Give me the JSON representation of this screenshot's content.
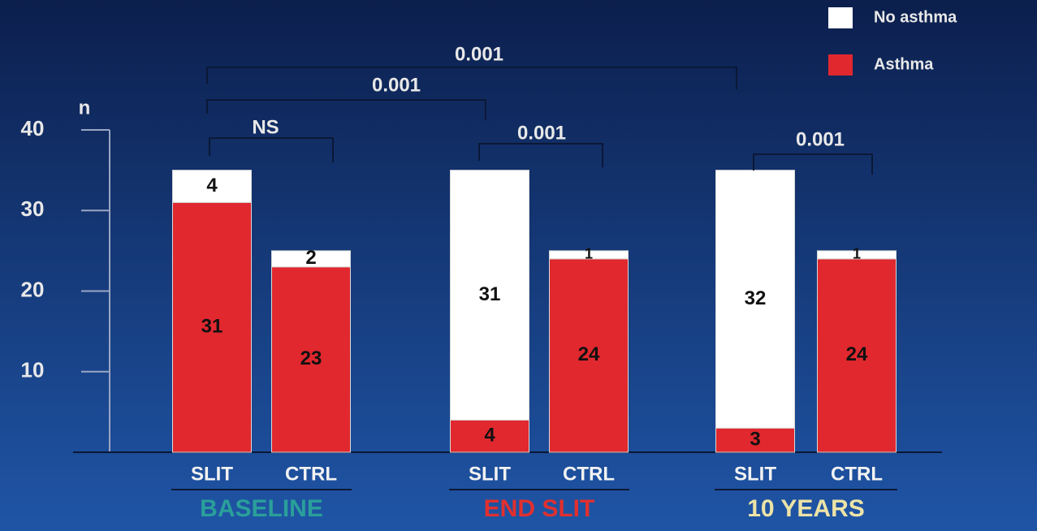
{
  "chart_data": {
    "type": "stacked-bar",
    "y_label": "n",
    "ylim": [
      0,
      40
    ],
    "yticks": [
      10,
      20,
      30,
      40
    ],
    "groups": [
      {
        "label": "BASELINE",
        "color": "#2a9f9a",
        "categories": [
          "SLIT",
          "CTRL"
        ]
      },
      {
        "label": "END SLIT",
        "color": "#e0302f",
        "categories": [
          "SLIT",
          "CTRL"
        ]
      },
      {
        "label": "10 YEARS",
        "color": "#ece3a6",
        "categories": [
          "SLIT",
          "CTRL"
        ]
      }
    ],
    "series": [
      {
        "name": "Asthma",
        "color": "#e0282e",
        "values": [
          31,
          23,
          4,
          24,
          3,
          24
        ]
      },
      {
        "name": "No asthma",
        "color": "#ffffff",
        "values": [
          4,
          2,
          31,
          1,
          32,
          1
        ]
      }
    ],
    "legend": "top-right",
    "annotations": [
      "0.001",
      "0.001",
      "NS",
      "0.001",
      "0.001"
    ]
  }
}
